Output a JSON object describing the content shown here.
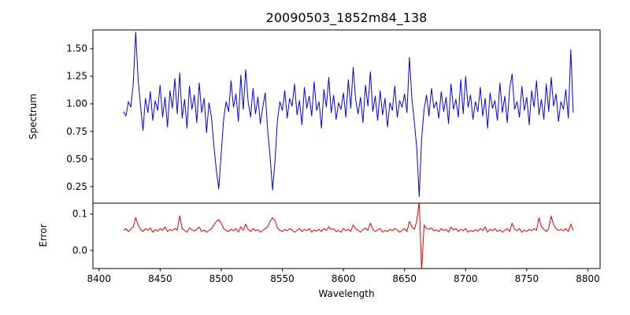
{
  "figure": {
    "title": "20090503_1852m84_138",
    "xlabel": "Wavelength",
    "ylabel_top": "Spectrum",
    "ylabel_bottom": "Error",
    "background": "#ffffff",
    "spectrum_color": "#0000ff",
    "error_color": "#ee0000"
  },
  "chart_data": {
    "type": "line",
    "title": "20090503_1852m84_138",
    "xlabel": "Wavelength",
    "x_start": 8420,
    "x_step": 2,
    "xlim": [
      8395,
      8810
    ],
    "x_ticks": [
      8400,
      8450,
      8500,
      8550,
      8600,
      8650,
      8700,
      8750,
      8800
    ],
    "x_tick_labels": [
      "8400",
      "8450",
      "8500",
      "8550",
      "8600",
      "8650",
      "8700",
      "8750",
      "8800"
    ],
    "features": {
      "absorption_lines_x": [
        8498,
        8542,
        8662
      ],
      "error_spike_x": 8662
    },
    "panels": [
      {
        "name": "spectrum",
        "ylabel": "Spectrum",
        "color": "#0000ff",
        "ylim": [
          0.1,
          1.67
        ],
        "y_ticks": [
          0.25,
          0.5,
          0.75,
          1.0,
          1.25,
          1.5
        ],
        "y_tick_labels": [
          "0.25",
          "0.50",
          "0.75",
          "1.00",
          "1.25",
          "1.50"
        ],
        "values": [
          0.93,
          0.89,
          1.02,
          0.97,
          1.18,
          1.65,
          1.22,
          0.98,
          0.76,
          1.05,
          0.92,
          1.11,
          0.85,
          1.03,
          0.94,
          1.17,
          0.88,
          1.06,
          0.79,
          1.12,
          0.96,
          1.23,
          0.91,
          1.28,
          0.87,
          1.04,
          0.78,
          1.16,
          0.95,
          1.08,
          0.83,
          1.19,
          0.92,
          1.05,
          0.74,
          1.01,
          0.88,
          0.62,
          0.4,
          0.23,
          0.55,
          0.86,
          1.02,
          0.93,
          1.21,
          0.97,
          1.09,
          0.84,
          1.26,
          0.95,
          1.31,
          1.02,
          0.88,
          1.14,
          0.91,
          1.06,
          0.82,
          0.97,
          1.1,
          0.76,
          0.52,
          0.22,
          0.48,
          0.85,
          1.02,
          0.94,
          1.12,
          0.87,
          1.05,
          0.98,
          1.18,
          0.9,
          1.03,
          0.81,
          1.15,
          0.96,
          1.07,
          0.89,
          1.2,
          0.94,
          1.02,
          0.78,
          1.13,
          0.97,
          1.24,
          0.92,
          1.08,
          0.86,
          1.01,
          0.95,
          1.1,
          0.88,
          1.22,
          0.96,
          1.33,
          1.04,
          0.91,
          1.06,
          0.83,
          1.17,
          0.98,
          1.29,
          0.93,
          1.07,
          0.85,
          1.12,
          0.9,
          1.05,
          0.79,
          1.01,
          0.94,
          1.16,
          0.88,
          1.03,
          0.97,
          1.09,
          0.92,
          1.42,
          1.05,
          0.84,
          0.6,
          0.16,
          0.68,
          0.95,
          1.08,
          0.89,
          1.14,
          0.96,
          1.02,
          0.87,
          1.11,
          0.93,
          1.06,
          0.82,
          1.18,
          0.95,
          1.04,
          0.88,
          1.22,
          0.91,
          1.25,
          0.97,
          1.08,
          0.86,
          1.02,
          0.93,
          1.15,
          0.89,
          1.05,
          0.78,
          1.1,
          0.96,
          1.03,
          0.85,
          1.19,
          0.92,
          1.07,
          0.83,
          1.14,
          1.27,
          0.95,
          1.02,
          0.88,
          1.16,
          0.94,
          1.06,
          0.81,
          1.12,
          0.97,
          1.21,
          0.9,
          1.04,
          0.86,
          1.18,
          0.93,
          1.24,
          0.98,
          1.09,
          0.84,
          1.02,
          0.95,
          1.13,
          0.87,
          1.49,
          0.92
        ]
      },
      {
        "name": "error",
        "ylabel": "Error",
        "color": "#ee0000",
        "ylim": [
          -0.05,
          0.13
        ],
        "y_ticks": [
          0.0,
          0.1
        ],
        "y_tick_labels": [
          "0.0",
          "0.1"
        ],
        "values": [
          0.055,
          0.06,
          0.052,
          0.058,
          0.065,
          0.09,
          0.07,
          0.058,
          0.052,
          0.06,
          0.055,
          0.062,
          0.05,
          0.057,
          0.053,
          0.06,
          0.055,
          0.065,
          0.052,
          0.058,
          0.054,
          0.06,
          0.056,
          0.095,
          0.06,
          0.055,
          0.05,
          0.062,
          0.057,
          0.053,
          0.058,
          0.064,
          0.052,
          0.056,
          0.05,
          0.055,
          0.06,
          0.07,
          0.08,
          0.085,
          0.075,
          0.06,
          0.055,
          0.052,
          0.058,
          0.054,
          0.06,
          0.05,
          0.065,
          0.055,
          0.072,
          0.058,
          0.052,
          0.06,
          0.054,
          0.057,
          0.05,
          0.055,
          0.06,
          0.065,
          0.08,
          0.09,
          0.082,
          0.062,
          0.055,
          0.052,
          0.058,
          0.054,
          0.06,
          0.056,
          0.05,
          0.055,
          0.06,
          0.052,
          0.058,
          0.054,
          0.06,
          0.05,
          0.056,
          0.053,
          0.058,
          0.052,
          0.06,
          0.055,
          0.065,
          0.057,
          0.06,
          0.052,
          0.055,
          0.05,
          0.06,
          0.054,
          0.058,
          0.052,
          0.07,
          0.06,
          0.055,
          0.05,
          0.057,
          0.062,
          0.055,
          0.075,
          0.058,
          0.052,
          0.056,
          0.06,
          0.05,
          0.055,
          0.052,
          0.058,
          0.054,
          0.06,
          0.056,
          0.05,
          0.055,
          0.06,
          0.052,
          0.08,
          0.065,
          0.058,
          0.08,
          0.135,
          -0.055,
          0.07,
          0.06,
          0.058,
          0.062,
          0.054,
          0.056,
          0.052,
          0.06,
          0.055,
          0.058,
          0.05,
          0.064,
          0.056,
          0.06,
          0.052,
          0.058,
          0.054,
          0.06,
          0.05,
          0.055,
          0.052,
          0.057,
          0.053,
          0.06,
          0.055,
          0.065,
          0.05,
          0.058,
          0.054,
          0.06,
          0.052,
          0.056,
          0.05,
          0.055,
          0.06,
          0.052,
          0.075,
          0.058,
          0.054,
          0.06,
          0.05,
          0.056,
          0.052,
          0.058,
          0.054,
          0.06,
          0.055,
          0.09,
          0.065,
          0.058,
          0.052,
          0.06,
          0.095,
          0.07,
          0.06,
          0.055,
          0.058,
          0.054,
          0.06,
          0.052,
          0.072,
          0.055
        ]
      }
    ]
  }
}
